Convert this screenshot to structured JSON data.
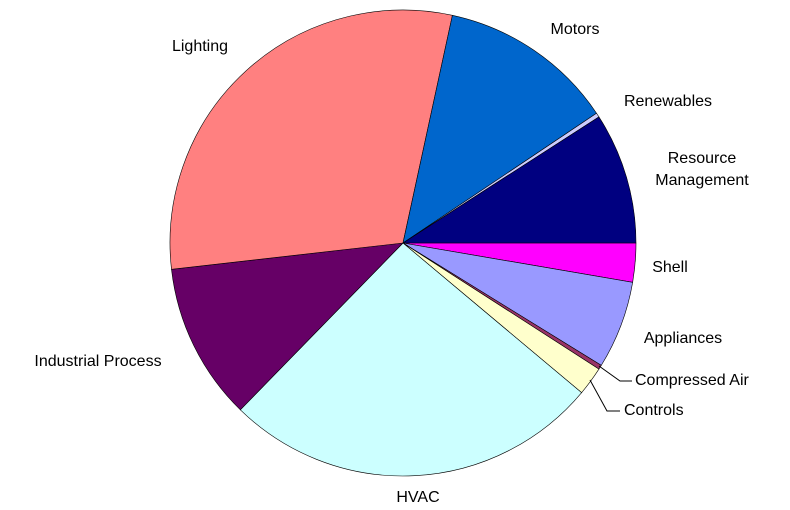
{
  "chart_data": {
    "type": "pie",
    "categories": [
      "Shell",
      "Appliances",
      "Compressed Air",
      "Controls",
      "HVAC",
      "Industrial Process",
      "Lighting",
      "Motors",
      "Renewables",
      "Resource Management"
    ],
    "values": [
      2.7,
      6.1,
      0.3,
      2.0,
      26.2,
      10.9,
      30.2,
      12.2,
      0.3,
      9.1
    ],
    "colors": [
      "#ff00ff",
      "#9999ff",
      "#993366",
      "#ffffcc",
      "#ccffff",
      "#660066",
      "#ff8080",
      "#0066cc",
      "#ccccff",
      "#000080"
    ]
  }
}
